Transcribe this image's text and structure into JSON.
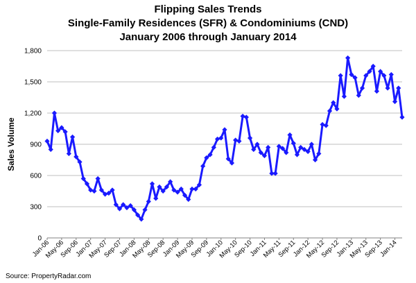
{
  "chart_data": {
    "type": "line",
    "title": [
      "Flipping Sales Trends",
      "Single-Family Residences (SFR) & Condominiums (CND)",
      "January 2006 through January 2014"
    ],
    "xlabel": "",
    "ylabel": "Sales Volume",
    "ylim": [
      0,
      1800
    ],
    "yticks": [
      "0",
      "300",
      "600",
      "900",
      "1,200",
      "1,500",
      "1,800"
    ],
    "ytick_values": [
      0,
      300,
      600,
      900,
      1200,
      1500,
      1800
    ],
    "grid": true,
    "line_color": "#1a1aff",
    "source": "Source: PropertyRadar.com",
    "x_tick_labels": [
      "Jan-06",
      "May-06",
      "Sep-06",
      "Jan-07",
      "May-07",
      "Sep-07",
      "Jan-08",
      "May-08",
      "Sep-08",
      "Jan-09",
      "May-09",
      "Sep-09",
      "Jan-10",
      "May-10",
      "Sep-10",
      "Jan-11",
      "May-11",
      "Sep-11",
      "Jan-12",
      "May-12",
      "Sep-12",
      "Jan-13",
      "May-13",
      "Sep-13",
      "Jan-14"
    ],
    "series": [
      {
        "values": [
          930,
          850,
          1200,
          1030,
          1060,
          1020,
          810,
          970,
          780,
          730,
          570,
          520,
          460,
          450,
          570,
          460,
          420,
          430,
          460,
          320,
          280,
          320,
          290,
          310,
          270,
          220,
          180,
          270,
          350,
          520,
          380,
          490,
          450,
          490,
          540,
          460,
          440,
          470,
          410,
          370,
          470,
          470,
          510,
          690,
          770,
          800,
          870,
          950,
          960,
          1040,
          760,
          720,
          940,
          930,
          1170,
          1160,
          960,
          850,
          900,
          820,
          790,
          870,
          620,
          620,
          880,
          860,
          820,
          990,
          910,
          800,
          870,
          850,
          830,
          900,
          750,
          810,
          1090,
          1080,
          1220,
          1300,
          1240,
          1560,
          1360,
          1730,
          1570,
          1540,
          1370,
          1440,
          1560,
          1600,
          1650,
          1410,
          1600,
          1560,
          1440,
          1570,
          1310,
          1440,
          1160
        ]
      }
    ]
  }
}
